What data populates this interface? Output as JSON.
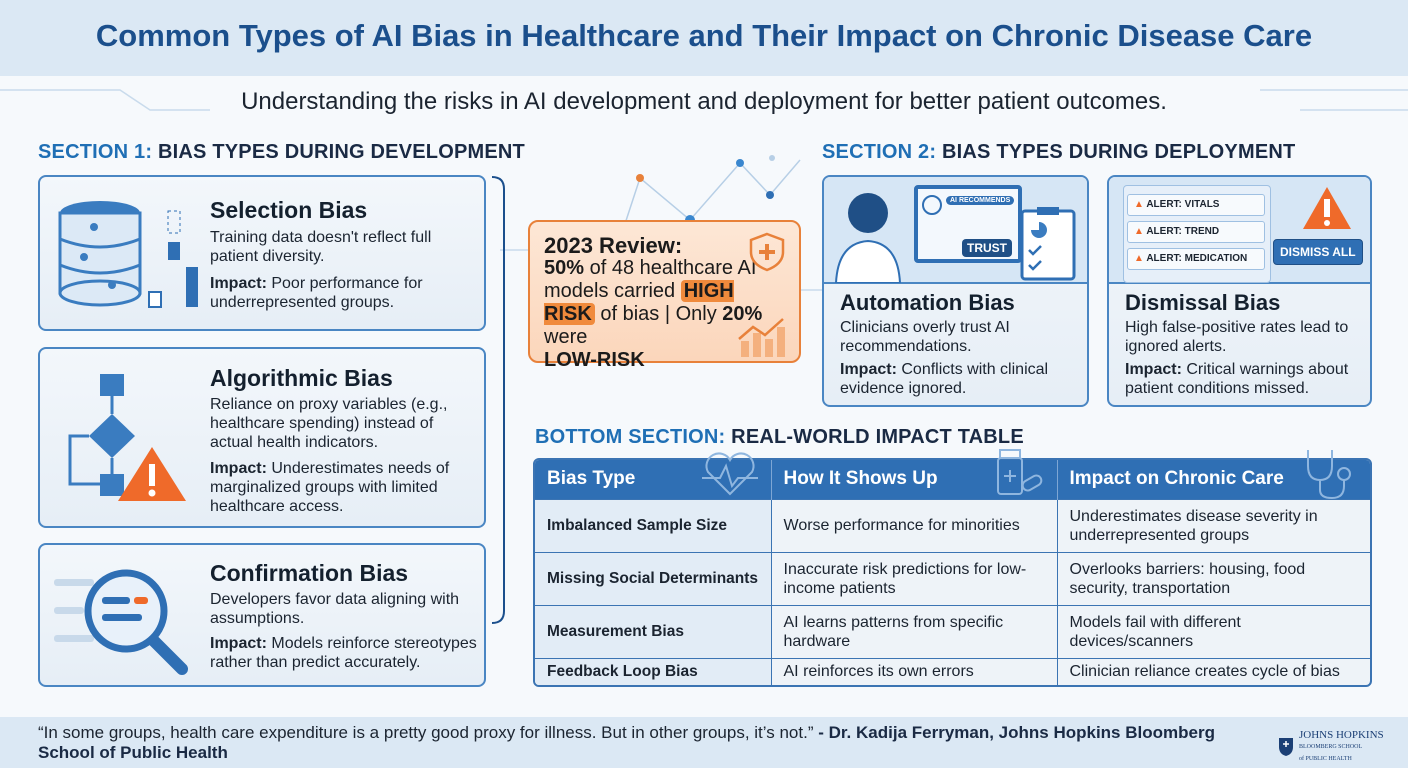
{
  "title": "Common Types of AI Bias in Healthcare and Their Impact on Chronic Disease Care",
  "subtitle": "Understanding the risks in AI development and deployment for better patient outcomes.",
  "section1": {
    "prefix": "SECTION 1:",
    "label": "BIAS TYPES DURING DEVELOPMENT",
    "cards": [
      {
        "title": "Selection Bias",
        "desc": "Training data doesn't reflect full patient diversity.",
        "impact_label": "Impact:",
        "impact": "Poor performance for underrepresented groups.",
        "icon": "database-chart-icon"
      },
      {
        "title": "Algorithmic Bias",
        "desc": "Reliance on proxy variables (e.g., healthcare spending) instead of actual health indicators.",
        "impact_label": "Impact:",
        "impact": "Underestimates needs of marginalized groups with limited healthcare access.",
        "icon": "flowchart-warning-icon"
      },
      {
        "title": "Confirmation Bias",
        "desc": "Developers favor data aligning with assumptions.",
        "impact_label": "Impact:",
        "impact": "Models reinforce stereotypes rather than predict accurately.",
        "icon": "magnifier-icon"
      }
    ]
  },
  "callout": {
    "heading": "2023 Review:",
    "pct1": "50%",
    "text1": "of 48 healthcare AI models carried",
    "highlight": "HIGH RISK",
    "text2": "of bias | Only",
    "pct2": "20%",
    "text3": "were",
    "end": "LOW-RISK"
  },
  "section2": {
    "prefix": "SECTION 2:",
    "label": "BIAS TYPES DURING DEPLOYMENT",
    "cards": [
      {
        "title": "Automation Bias",
        "desc": "Clinicians overly trust AI recommendations.",
        "impact_label": "Impact:",
        "impact": "Conflicts with clinical evidence ignored.",
        "screen_label": "AI RECOMMENDS",
        "badge": "TRUST"
      },
      {
        "title": "Dismissal Bias",
        "desc": "High false-positive rates lead to ignored alerts.",
        "impact_label": "Impact:",
        "impact": "Critical warnings about patient conditions missed.",
        "alerts": [
          "ALERT: VITALS",
          "ALERT: TREND",
          "ALERT: MEDICATION"
        ],
        "button": "DISMISS ALL"
      }
    ]
  },
  "bottom": {
    "prefix": "BOTTOM SECTION:",
    "label": "REAL-WORLD IMPACT TABLE",
    "headers": [
      "Bias Type",
      "How It Shows Up",
      "Impact on Chronic Care"
    ],
    "rows": [
      [
        "Imbalanced Sample Size",
        "Worse performance for minorities",
        "Underestimates disease severity in underrepresented groups"
      ],
      [
        "Missing Social Determinants",
        "Inaccurate risk predictions for low-income patients",
        "Overlooks barriers: housing, food security, transportation"
      ],
      [
        "Measurement Bias",
        "AI learns patterns from specific hardware",
        "Models fail with different devices/scanners"
      ],
      [
        "Feedback Loop Bias",
        "AI reinforces its own errors",
        "Clinician reliance creates cycle of bias"
      ]
    ]
  },
  "footer": {
    "quote": "“In some groups, health care expenditure is a pretty good proxy for illness. But in other groups, it’s not.”",
    "attribution": "- Dr. Kadija Ferryman, Johns Hopkins Bloomberg School of Public Health",
    "logo": "JOHNS HOPKINS"
  },
  "colors": {
    "primary": "#1f6fb5",
    "navy": "#1b4f8c",
    "accent": "#e8813a",
    "bg": "#dbe8f4"
  }
}
